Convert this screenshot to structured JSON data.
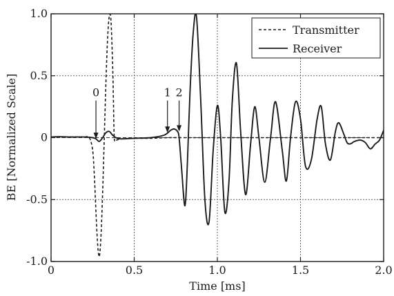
{
  "chart_data": {
    "type": "line",
    "xlabel": "Time [ms]",
    "ylabel": "BE [Normalized Scale]",
    "xlim": [
      0,
      2.0
    ],
    "ylim": [
      -1.0,
      1.0
    ],
    "x_ticks": [
      0,
      0.5,
      1.0,
      1.5,
      2.0
    ],
    "x_tick_labels": [
      "0",
      "0.5",
      "1.0",
      "1.5",
      "2.0"
    ],
    "y_ticks": [
      -1.0,
      -0.5,
      0,
      0.5,
      1.0
    ],
    "y_tick_labels": [
      "-1.0",
      "-0.5",
      "0",
      "0.5",
      "1.0"
    ],
    "grid": true,
    "legend_position": "top-right",
    "series": [
      {
        "name": "Transmitter",
        "style": "dashed",
        "color": "#1a1a1a",
        "x": [
          0,
          0.05,
          0.1,
          0.15,
          0.2,
          0.23,
          0.25,
          0.26,
          0.27,
          0.28,
          0.29,
          0.3,
          0.31,
          0.32,
          0.33,
          0.34,
          0.35,
          0.36,
          0.37,
          0.375,
          0.38,
          0.39,
          0.42,
          0.5,
          0.6,
          0.7,
          0.8,
          1.0,
          1.2,
          1.4,
          1.6,
          1.8,
          2.0
        ],
        "y": [
          0.005,
          0.005,
          0.005,
          0.005,
          0.005,
          0.0,
          -0.1,
          -0.3,
          -0.6,
          -0.86,
          -0.96,
          -0.8,
          -0.45,
          0.0,
          0.45,
          0.8,
          0.98,
          0.95,
          0.6,
          0.3,
          0.0,
          -0.02,
          -0.01,
          -0.005,
          -0.005,
          0.0,
          0.0,
          0.0,
          0.0,
          0.0,
          0.0,
          0.0,
          0.0
        ]
      },
      {
        "name": "Receiver",
        "style": "solid",
        "color": "#1a1a1a",
        "x": [
          0,
          0.05,
          0.1,
          0.15,
          0.2,
          0.25,
          0.27,
          0.29,
          0.31,
          0.33,
          0.35,
          0.37,
          0.39,
          0.42,
          0.5,
          0.6,
          0.68,
          0.72,
          0.74,
          0.76,
          0.77,
          0.785,
          0.805,
          0.82,
          0.835,
          0.855,
          0.875,
          0.9,
          0.925,
          0.95,
          0.975,
          1.0,
          1.02,
          1.045,
          1.07,
          1.09,
          1.115,
          1.14,
          1.17,
          1.2,
          1.225,
          1.25,
          1.285,
          1.32,
          1.35,
          1.39,
          1.415,
          1.44,
          1.47,
          1.5,
          1.53,
          1.565,
          1.6,
          1.625,
          1.65,
          1.68,
          1.71,
          1.73,
          1.76,
          1.78,
          1.8,
          1.825,
          1.86,
          1.89,
          1.92,
          1.95,
          1.975,
          2.0
        ],
        "y": [
          0.005,
          0.008,
          0.005,
          0.005,
          0.005,
          0.0,
          -0.01,
          -0.03,
          0.0,
          0.04,
          0.05,
          0.02,
          0.0,
          -0.01,
          -0.005,
          0.0,
          0.02,
          0.06,
          0.07,
          0.05,
          0.0,
          -0.25,
          -0.55,
          -0.2,
          0.35,
          0.85,
          0.97,
          0.3,
          -0.5,
          -0.68,
          -0.1,
          0.26,
          0.0,
          -0.6,
          -0.35,
          0.3,
          0.6,
          0.05,
          -0.46,
          -0.05,
          0.25,
          0.0,
          -0.36,
          0.0,
          0.29,
          -0.1,
          -0.35,
          0.0,
          0.29,
          0.15,
          -0.23,
          -0.18,
          0.15,
          0.25,
          -0.05,
          -0.18,
          0.05,
          0.12,
          0.03,
          -0.04,
          -0.05,
          -0.03,
          -0.02,
          -0.04,
          -0.09,
          -0.05,
          -0.02,
          0.06
        ]
      }
    ],
    "annotations": [
      {
        "text": "0",
        "x": 0.27,
        "y_tip": -0.01,
        "y_tail": 0.3
      },
      {
        "text": "1",
        "x": 0.7,
        "y_tip": 0.04,
        "y_tail": 0.3
      },
      {
        "text": "2",
        "x": 0.77,
        "y_tip": 0.05,
        "y_tail": 0.3
      }
    ]
  }
}
